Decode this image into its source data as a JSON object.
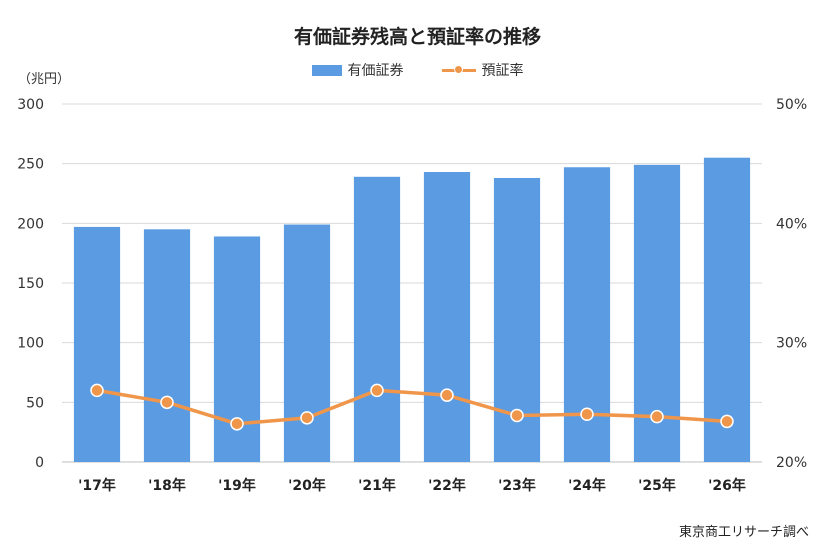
{
  "chart_data": {
    "type": "bar",
    "title": "有価証券残高と預証率の推移",
    "unit_left": "（兆円）",
    "categories": [
      "'17年",
      "'18年",
      "'19年",
      "'20年",
      "'21年",
      "'22年",
      "'23年",
      "'24年",
      "'25年",
      "'26年"
    ],
    "series": [
      {
        "name": "有価証券",
        "type": "bar",
        "axis": "left",
        "color": "#5b9be1",
        "values": [
          197,
          195,
          189,
          199,
          239,
          243,
          238,
          247,
          249,
          255
        ]
      },
      {
        "name": "預証率",
        "type": "line",
        "axis": "right",
        "color": "#f0964b",
        "unit": "%",
        "values": [
          26.0,
          25.0,
          23.2,
          23.7,
          26.0,
          25.6,
          23.9,
          24.0,
          23.8,
          23.4
        ]
      }
    ],
    "y_left": {
      "min": 0,
      "max": 300,
      "ticks": [
        0,
        50,
        100,
        150,
        200,
        250,
        300
      ]
    },
    "y_right": {
      "min": 20,
      "max": 50,
      "ticks": [
        20,
        30,
        40,
        50
      ],
      "tick_labels": [
        "20%",
        "30%",
        "40%",
        "50%"
      ]
    },
    "grid": true,
    "legend": "top-center",
    "source": "東京商工リサーチ調べ"
  }
}
